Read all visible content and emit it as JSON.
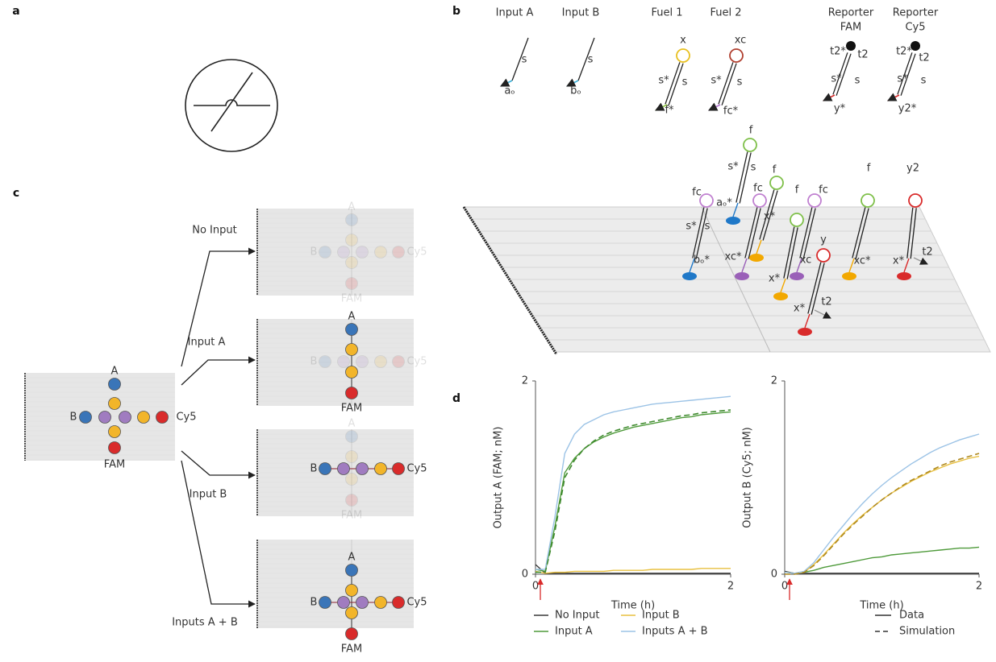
{
  "panel_labels": [
    "a",
    "b",
    "c",
    "d"
  ],
  "panel_b": {
    "strands": [
      {
        "title": [
          "Input A"
        ],
        "labels": [
          "s",
          "aₒ"
        ]
      },
      {
        "title": [
          "Input B"
        ],
        "labels": [
          "s",
          "bₒ"
        ]
      },
      {
        "title": [
          "Fuel 1"
        ],
        "labels": [
          "x",
          "s*",
          "s",
          "f*"
        ]
      },
      {
        "title": [
          "Fuel 2"
        ],
        "labels": [
          "xc",
          "s*",
          "s",
          "fc*"
        ]
      },
      {
        "title": [
          "Reporter",
          "FAM"
        ],
        "labels": [
          "t2*",
          "t2",
          "s*",
          "s",
          "y*"
        ]
      },
      {
        "title": [
          "Reporter",
          "Cy5"
        ],
        "labels": [
          "t2*",
          "t2",
          "s*",
          "s",
          "y2*"
        ]
      }
    ],
    "surface_labels": [
      "f",
      "s*",
      "s",
      "fc",
      "aₒ*",
      "f",
      "fc",
      "f",
      "fc",
      "f",
      "y2",
      "s*",
      "s",
      "x*",
      "xc*",
      "x*",
      "xc",
      "y",
      "xc*",
      "x*",
      "t2",
      "bₒ*",
      "x*",
      "t2"
    ]
  },
  "panel_c": {
    "node_labels": [
      "A",
      "B",
      "Cy5",
      "FAM"
    ],
    "conditions": [
      "No Input",
      "Input A",
      "Input B",
      "Inputs A + B"
    ]
  },
  "chart_data": [
    {
      "type": "line",
      "xlabel": "Time (h)",
      "ylabel": "Output A (FAM; nM)",
      "x": [
        0,
        0.1,
        0.2,
        0.3,
        0.4,
        0.5,
        0.6,
        0.7,
        0.8,
        0.9,
        1.0,
        1.1,
        1.2,
        1.3,
        1.4,
        1.5,
        1.6,
        1.7,
        1.8,
        1.9,
        2.0
      ],
      "xlim": [
        0,
        2
      ],
      "xticks": [
        0,
        2
      ],
      "ylim": [
        0,
        2
      ],
      "yticks": [
        0,
        2
      ],
      "series": [
        {
          "name": "No Input",
          "color": "#3a3a3a",
          "values": [
            0.1,
            0.01,
            0.01,
            0.01,
            0.01,
            0.01,
            0.01,
            0.01,
            0.01,
            0.01,
            0.01,
            0.01,
            0.01,
            0.01,
            0.01,
            0.01,
            0.01,
            0.01,
            0.01,
            0.01,
            0.01
          ]
        },
        {
          "name": "Input A",
          "color": "#4e9a3a",
          "values": [
            0.05,
            0.03,
            0.5,
            1.05,
            1.2,
            1.3,
            1.37,
            1.42,
            1.46,
            1.49,
            1.52,
            1.54,
            1.56,
            1.58,
            1.6,
            1.62,
            1.63,
            1.65,
            1.66,
            1.67,
            1.68
          ]
        },
        {
          "name": "Input B",
          "color": "#e8c040",
          "values": [
            0.03,
            0.01,
            0.02,
            0.02,
            0.03,
            0.03,
            0.03,
            0.03,
            0.04,
            0.04,
            0.04,
            0.04,
            0.05,
            0.05,
            0.05,
            0.05,
            0.05,
            0.06,
            0.06,
            0.06,
            0.06
          ]
        },
        {
          "name": "Inputs A + B",
          "color": "#9cc3e6",
          "values": [
            0.05,
            0.05,
            0.6,
            1.25,
            1.45,
            1.55,
            1.6,
            1.65,
            1.68,
            1.7,
            1.72,
            1.74,
            1.76,
            1.77,
            1.78,
            1.79,
            1.8,
            1.81,
            1.82,
            1.83,
            1.84
          ]
        }
      ],
      "simulation": [
        {
          "color": "#3f8a2e",
          "values": [
            0.02,
            0.02,
            0.45,
            1.0,
            1.18,
            1.3,
            1.38,
            1.44,
            1.48,
            1.51,
            1.54,
            1.56,
            1.58,
            1.6,
            1.62,
            1.64,
            1.65,
            1.67,
            1.68,
            1.69,
            1.7
          ]
        }
      ]
    },
    {
      "type": "line",
      "xlabel": "Time (h)",
      "ylabel": "Output B (Cy5; nM)",
      "x": [
        0,
        0.1,
        0.2,
        0.3,
        0.4,
        0.5,
        0.6,
        0.7,
        0.8,
        0.9,
        1.0,
        1.1,
        1.2,
        1.3,
        1.4,
        1.5,
        1.6,
        1.7,
        1.8,
        1.9,
        2.0
      ],
      "xlim": [
        0,
        2
      ],
      "xticks": [
        0,
        2
      ],
      "ylim": [
        0,
        2
      ],
      "yticks": [
        0,
        2
      ],
      "legend": [
        "Data",
        "Simulation"
      ],
      "series": [
        {
          "color": "#3a3a3a",
          "values": [
            0.03,
            0.01,
            0.01,
            0.01,
            0.01,
            0.01,
            0.01,
            0.01,
            0.01,
            0.01,
            0.01,
            0.01,
            0.01,
            0.01,
            0.01,
            0.01,
            0.01,
            0.01,
            0.01,
            0.01,
            0.01
          ]
        },
        {
          "color": "#4e9a3a",
          "values": [
            0.02,
            0.01,
            0.02,
            0.04,
            0.07,
            0.09,
            0.11,
            0.13,
            0.15,
            0.17,
            0.18,
            0.2,
            0.21,
            0.22,
            0.23,
            0.24,
            0.25,
            0.26,
            0.27,
            0.27,
            0.28
          ]
        },
        {
          "color": "#e8c040",
          "values": [
            0.02,
            0.01,
            0.02,
            0.1,
            0.2,
            0.31,
            0.42,
            0.52,
            0.61,
            0.69,
            0.77,
            0.84,
            0.9,
            0.96,
            1.01,
            1.06,
            1.1,
            1.14,
            1.17,
            1.2,
            1.22
          ]
        },
        {
          "color": "#9cc3e6",
          "values": [
            0.02,
            0.01,
            0.03,
            0.12,
            0.25,
            0.38,
            0.5,
            0.62,
            0.73,
            0.83,
            0.92,
            1.0,
            1.07,
            1.14,
            1.2,
            1.26,
            1.31,
            1.35,
            1.39,
            1.42,
            1.45
          ]
        }
      ],
      "simulation": [
        {
          "color": "#b08a20",
          "values": [
            0,
            0,
            0.02,
            0.09,
            0.19,
            0.3,
            0.41,
            0.51,
            0.6,
            0.69,
            0.77,
            0.84,
            0.91,
            0.97,
            1.02,
            1.07,
            1.12,
            1.16,
            1.19,
            1.22,
            1.25
          ]
        }
      ]
    }
  ]
}
